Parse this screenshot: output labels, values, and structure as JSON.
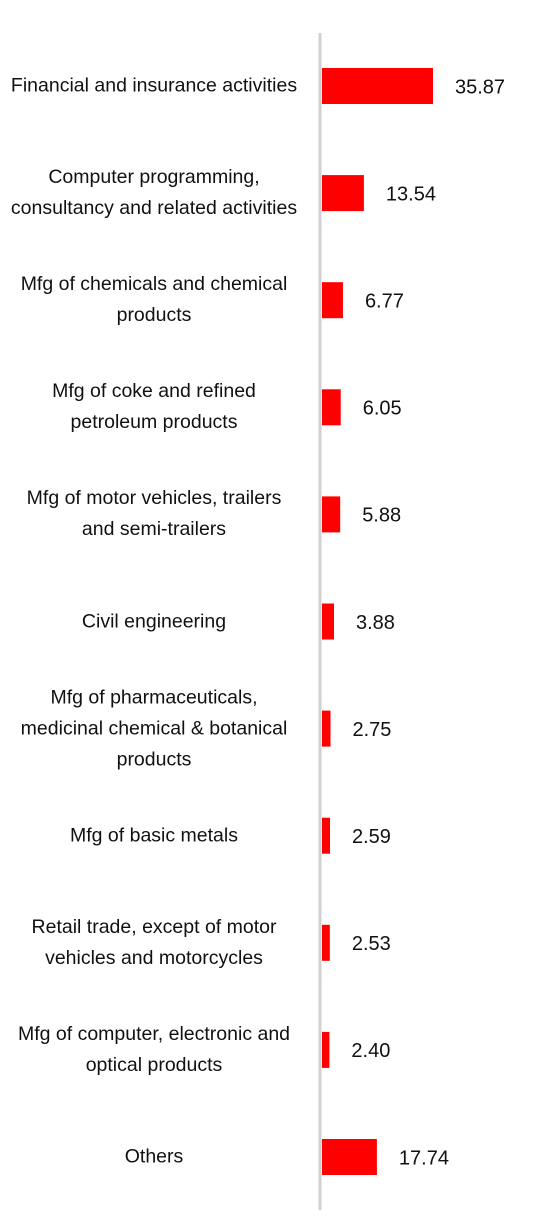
{
  "chart_data": {
    "type": "bar",
    "orientation": "horizontal",
    "categories": [
      "Financial and insurance activities",
      "Computer programming, consultancy and related activities",
      "Mfg of chemicals and chemical products",
      "Mfg of coke and refined petroleum products",
      "Mfg of motor vehicles, trailers and semi-trailers",
      "Civil engineering",
      "Mfg of pharmaceuticals, medicinal chemical & botanical products",
      "Mfg of basic metals",
      "Retail trade, except of motor vehicles and motorcycles",
      "Mfg of computer, electronic and optical products",
      "Others"
    ],
    "values": [
      35.87,
      13.54,
      6.77,
      6.05,
      5.88,
      3.88,
      2.75,
      2.59,
      2.53,
      2.4,
      17.74
    ],
    "value_labels": [
      "35.87",
      "13.54",
      "6.77",
      "6.05",
      "5.88",
      "3.88",
      "2.75",
      "2.59",
      "2.53",
      "2.40",
      "17.74"
    ],
    "color": "#ff0000"
  }
}
